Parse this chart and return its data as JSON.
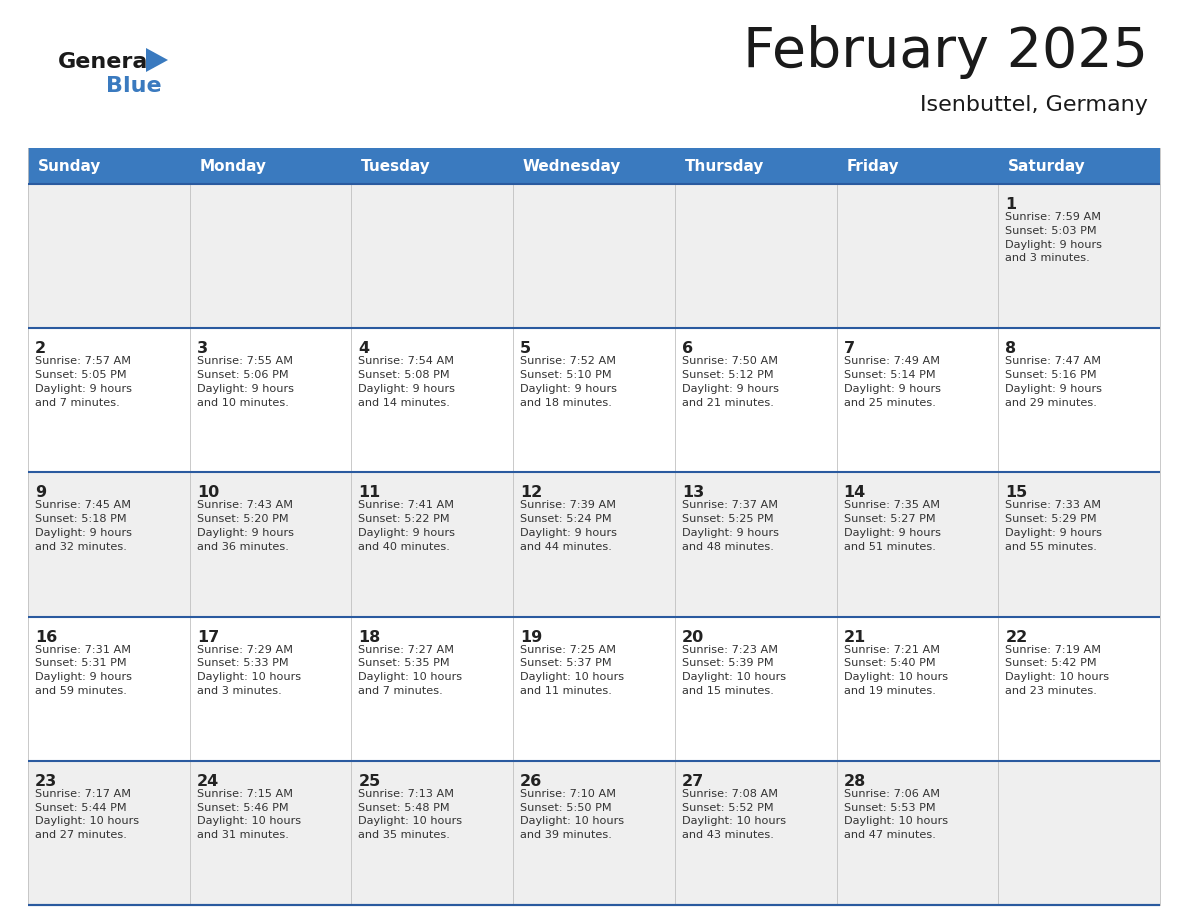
{
  "title": "February 2025",
  "subtitle": "Isenbuttel, Germany",
  "header_color": "#3a7abf",
  "header_text_color": "#ffffff",
  "days_of_week": [
    "Sunday",
    "Monday",
    "Tuesday",
    "Wednesday",
    "Thursday",
    "Friday",
    "Saturday"
  ],
  "bg_color_even": "#efefef",
  "bg_color_odd": "#ffffff",
  "border_color_strong": "#2a5a9f",
  "border_color_light": "#c0c0c0",
  "text_color": "#333333",
  "day_number_color": "#222222",
  "logo_general_color": "#1a1a1a",
  "logo_blue_color": "#3a7abf",
  "calendar_data": [
    [
      null,
      null,
      null,
      null,
      null,
      null,
      {
        "day": "1",
        "sunrise": "7:59 AM",
        "sunset": "5:03 PM",
        "daylight_h": "9 hours",
        "daylight_m": "and 3 minutes."
      }
    ],
    [
      {
        "day": "2",
        "sunrise": "7:57 AM",
        "sunset": "5:05 PM",
        "daylight_h": "9 hours",
        "daylight_m": "and 7 minutes."
      },
      {
        "day": "3",
        "sunrise": "7:55 AM",
        "sunset": "5:06 PM",
        "daylight_h": "9 hours",
        "daylight_m": "and 10 minutes."
      },
      {
        "day": "4",
        "sunrise": "7:54 AM",
        "sunset": "5:08 PM",
        "daylight_h": "9 hours",
        "daylight_m": "and 14 minutes."
      },
      {
        "day": "5",
        "sunrise": "7:52 AM",
        "sunset": "5:10 PM",
        "daylight_h": "9 hours",
        "daylight_m": "and 18 minutes."
      },
      {
        "day": "6",
        "sunrise": "7:50 AM",
        "sunset": "5:12 PM",
        "daylight_h": "9 hours",
        "daylight_m": "and 21 minutes."
      },
      {
        "day": "7",
        "sunrise": "7:49 AM",
        "sunset": "5:14 PM",
        "daylight_h": "9 hours",
        "daylight_m": "and 25 minutes."
      },
      {
        "day": "8",
        "sunrise": "7:47 AM",
        "sunset": "5:16 PM",
        "daylight_h": "9 hours",
        "daylight_m": "and 29 minutes."
      }
    ],
    [
      {
        "day": "9",
        "sunrise": "7:45 AM",
        "sunset": "5:18 PM",
        "daylight_h": "9 hours",
        "daylight_m": "and 32 minutes."
      },
      {
        "day": "10",
        "sunrise": "7:43 AM",
        "sunset": "5:20 PM",
        "daylight_h": "9 hours",
        "daylight_m": "and 36 minutes."
      },
      {
        "day": "11",
        "sunrise": "7:41 AM",
        "sunset": "5:22 PM",
        "daylight_h": "9 hours",
        "daylight_m": "and 40 minutes."
      },
      {
        "day": "12",
        "sunrise": "7:39 AM",
        "sunset": "5:24 PM",
        "daylight_h": "9 hours",
        "daylight_m": "and 44 minutes."
      },
      {
        "day": "13",
        "sunrise": "7:37 AM",
        "sunset": "5:25 PM",
        "daylight_h": "9 hours",
        "daylight_m": "and 48 minutes."
      },
      {
        "day": "14",
        "sunrise": "7:35 AM",
        "sunset": "5:27 PM",
        "daylight_h": "9 hours",
        "daylight_m": "and 51 minutes."
      },
      {
        "day": "15",
        "sunrise": "7:33 AM",
        "sunset": "5:29 PM",
        "daylight_h": "9 hours",
        "daylight_m": "and 55 minutes."
      }
    ],
    [
      {
        "day": "16",
        "sunrise": "7:31 AM",
        "sunset": "5:31 PM",
        "daylight_h": "9 hours",
        "daylight_m": "and 59 minutes."
      },
      {
        "day": "17",
        "sunrise": "7:29 AM",
        "sunset": "5:33 PM",
        "daylight_h": "10 hours",
        "daylight_m": "and 3 minutes."
      },
      {
        "day": "18",
        "sunrise": "7:27 AM",
        "sunset": "5:35 PM",
        "daylight_h": "10 hours",
        "daylight_m": "and 7 minutes."
      },
      {
        "day": "19",
        "sunrise": "7:25 AM",
        "sunset": "5:37 PM",
        "daylight_h": "10 hours",
        "daylight_m": "and 11 minutes."
      },
      {
        "day": "20",
        "sunrise": "7:23 AM",
        "sunset": "5:39 PM",
        "daylight_h": "10 hours",
        "daylight_m": "and 15 minutes."
      },
      {
        "day": "21",
        "sunrise": "7:21 AM",
        "sunset": "5:40 PM",
        "daylight_h": "10 hours",
        "daylight_m": "and 19 minutes."
      },
      {
        "day": "22",
        "sunrise": "7:19 AM",
        "sunset": "5:42 PM",
        "daylight_h": "10 hours",
        "daylight_m": "and 23 minutes."
      }
    ],
    [
      {
        "day": "23",
        "sunrise": "7:17 AM",
        "sunset": "5:44 PM",
        "daylight_h": "10 hours",
        "daylight_m": "and 27 minutes."
      },
      {
        "day": "24",
        "sunrise": "7:15 AM",
        "sunset": "5:46 PM",
        "daylight_h": "10 hours",
        "daylight_m": "and 31 minutes."
      },
      {
        "day": "25",
        "sunrise": "7:13 AM",
        "sunset": "5:48 PM",
        "daylight_h": "10 hours",
        "daylight_m": "and 35 minutes."
      },
      {
        "day": "26",
        "sunrise": "7:10 AM",
        "sunset": "5:50 PM",
        "daylight_h": "10 hours",
        "daylight_m": "and 39 minutes."
      },
      {
        "day": "27",
        "sunrise": "7:08 AM",
        "sunset": "5:52 PM",
        "daylight_h": "10 hours",
        "daylight_m": "and 43 minutes."
      },
      {
        "day": "28",
        "sunrise": "7:06 AM",
        "sunset": "5:53 PM",
        "daylight_h": "10 hours",
        "daylight_m": "and 47 minutes."
      },
      null
    ]
  ]
}
